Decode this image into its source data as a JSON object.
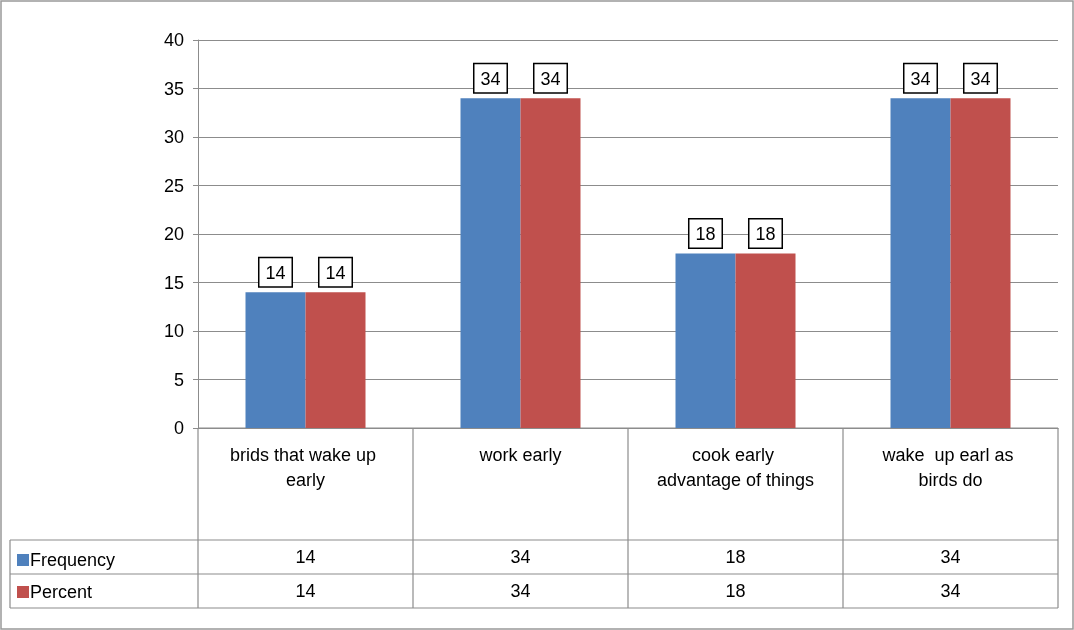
{
  "chart_data": {
    "type": "bar",
    "categories": [
      "brids that wake up early",
      "work early",
      "cook early advantage of things",
      "wake  up earl as birds do"
    ],
    "series": [
      {
        "name": "Frequency",
        "color": "#4f81bd",
        "values": [
          14,
          34,
          18,
          34
        ],
        "value_labels": [
          "14",
          "34",
          "18",
          "34"
        ]
      },
      {
        "name": "Percent",
        "color": "#c0504d",
        "values": [
          14,
          34,
          18,
          34
        ],
        "value_labels": [
          "14",
          "34",
          "18",
          "34"
        ]
      }
    ],
    "ylim": [
      0,
      40
    ],
    "yticks": [
      0,
      5,
      10,
      15,
      20,
      25,
      30,
      35,
      40
    ],
    "grid": "y",
    "legend": "bottom left",
    "data_labels": true
  }
}
